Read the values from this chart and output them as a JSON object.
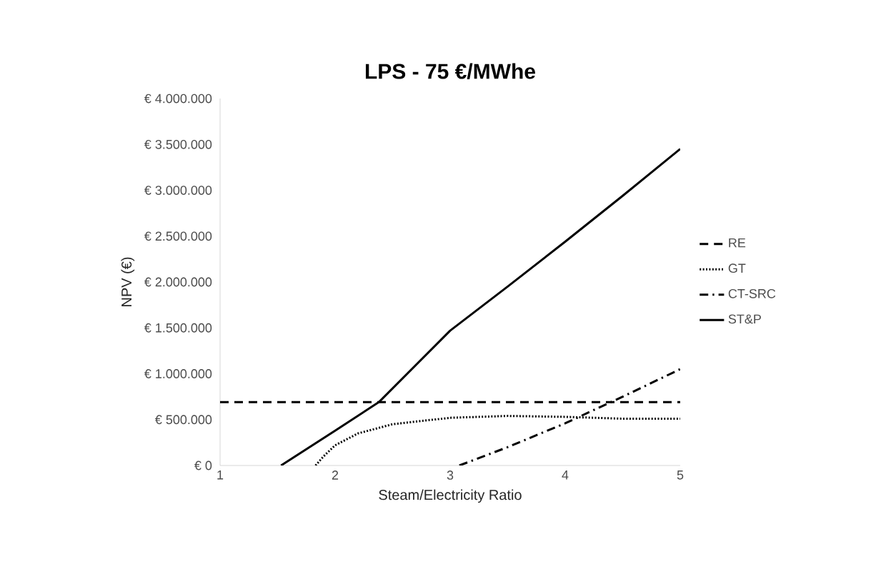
{
  "chart_data": {
    "type": "line",
    "title": "LPS - 75 €/MWhe",
    "xlabel": "Steam/Electricity Ratio",
    "ylabel": "NPV (€)",
    "xlim": [
      1,
      5
    ],
    "xticks": [
      1,
      2,
      3,
      4,
      5
    ],
    "ylim": [
      0,
      4000000
    ],
    "yticks": [
      {
        "value": 0,
        "label": "€ 0"
      },
      {
        "value": 500000,
        "label": "€ 500.000"
      },
      {
        "value": 1000000,
        "label": "€ 1.000.000"
      },
      {
        "value": 1500000,
        "label": "€ 1.500.000"
      },
      {
        "value": 2000000,
        "label": "€ 2.000.000"
      },
      {
        "value": 2500000,
        "label": "€ 2.500.000"
      },
      {
        "value": 3000000,
        "label": "€ 3.000.000"
      },
      {
        "value": 3500000,
        "label": "€ 3.500.000"
      },
      {
        "value": 4000000,
        "label": "€ 4.000.000"
      }
    ],
    "grid": false,
    "legend": "right",
    "marker": "none",
    "series": [
      {
        "name": "RE",
        "color": "#000000",
        "line_style": "dashed",
        "x": [
          1,
          5
        ],
        "values": [
          690000,
          690000
        ]
      },
      {
        "name": "GT",
        "color": "#000000",
        "line_style": "dotted",
        "x": [
          1.83,
          1.9,
          2,
          2.2,
          2.5,
          3,
          3.5,
          4,
          4.5,
          5
        ],
        "values": [
          0,
          100000,
          220000,
          350000,
          450000,
          520000,
          540000,
          530000,
          510000,
          510000
        ]
      },
      {
        "name": "CT-SRC",
        "color": "#000000",
        "line_style": "dashdot",
        "x": [
          3.08,
          3.5,
          4,
          4.5,
          5
        ],
        "values": [
          0,
          200000,
          460000,
          750000,
          1050000
        ]
      },
      {
        "name": "ST&P",
        "color": "#000000",
        "line_style": "solid",
        "x": [
          1.53,
          2,
          2.38,
          3,
          3.5,
          4,
          4.5,
          5
        ],
        "values": [
          0,
          380000,
          690000,
          1470000,
          1950000,
          2440000,
          2940000,
          3450000
        ]
      }
    ]
  }
}
